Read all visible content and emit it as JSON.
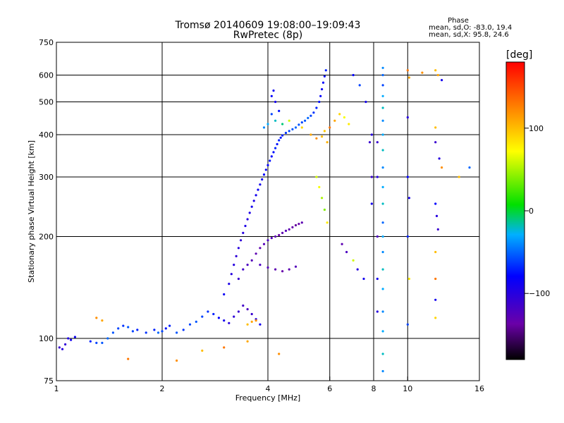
{
  "chart_data": {
    "type": "scatter",
    "title": "Tromsø 20140609 19:08:00–19:09:43",
    "subtitle": "RwPretec (8p)",
    "xlabel": "Frequency [MHz]",
    "ylabel": "Stationary phase Virtual Height [km]",
    "x_scale": "log",
    "y_scale": "log",
    "xlim": [
      1,
      16
    ],
    "ylim": [
      75,
      750
    ],
    "x_ticks": [
      1,
      2,
      4,
      6,
      8,
      10,
      16
    ],
    "x_tick_labels": [
      "1",
      "2",
      "4",
      "6",
      "8",
      "10",
      "16"
    ],
    "y_ticks": [
      75,
      100,
      200,
      300,
      400,
      500,
      600,
      750
    ],
    "y_tick_labels": [
      "75",
      "100",
      "200",
      "300",
      "400",
      "500",
      "600",
      "750"
    ],
    "x_grid": [
      2,
      4,
      6,
      8,
      10
    ],
    "y_grid": [
      100,
      200,
      300,
      400,
      500,
      600
    ],
    "stats": {
      "heading": "Phase",
      "o_line": "mean, sd,O: -83.0, 19.4",
      "x_line": "mean, sd,X:  95.8, 24.6"
    },
    "colorbar": {
      "label": "[deg]",
      "range": [
        -180,
        180
      ],
      "ticks": [
        100,
        0,
        -100
      ],
      "tick_labels": [
        "100",
        "0",
        "−100"
      ],
      "colormap": "rainbow"
    },
    "series": [
      {
        "points": [
          [
            1.02,
            94,
            -110
          ],
          [
            1.04,
            93,
            -100
          ],
          [
            1.06,
            96,
            -105
          ],
          [
            1.08,
            100,
            -95
          ],
          [
            1.1,
            99,
            -90
          ],
          [
            1.13,
            101,
            -85
          ],
          [
            1.25,
            98,
            -70
          ],
          [
            1.3,
            97,
            -60
          ],
          [
            1.35,
            97,
            -55
          ],
          [
            1.4,
            100,
            -50
          ],
          [
            1.45,
            104,
            -55
          ],
          [
            1.5,
            107,
            -60
          ],
          [
            1.55,
            109,
            -65
          ],
          [
            1.6,
            108,
            -55
          ],
          [
            1.65,
            105,
            -60
          ],
          [
            1.7,
            106,
            -70
          ],
          [
            1.8,
            104,
            -65
          ],
          [
            1.9,
            106,
            -70
          ],
          [
            1.95,
            104,
            -50
          ],
          [
            2.0,
            105,
            -60
          ],
          [
            2.05,
            107,
            -75
          ],
          [
            2.1,
            109,
            -70
          ],
          [
            2.2,
            104,
            -55
          ],
          [
            2.3,
            106,
            -65
          ],
          [
            2.4,
            110,
            -60
          ],
          [
            2.5,
            112,
            -55
          ],
          [
            2.6,
            116,
            -60
          ],
          [
            2.7,
            120,
            -65
          ],
          [
            2.8,
            118,
            -70
          ],
          [
            2.9,
            115,
            -80
          ],
          [
            3.0,
            113,
            -90
          ],
          [
            3.1,
            111,
            -100
          ],
          [
            3.2,
            116,
            -105
          ],
          [
            3.3,
            120,
            -110
          ],
          [
            3.4,
            125,
            -115
          ],
          [
            3.5,
            122,
            -120
          ],
          [
            3.6,
            118,
            -110
          ],
          [
            3.7,
            114,
            -100
          ],
          [
            3.8,
            110,
            -90
          ],
          [
            3.5,
            110,
            100
          ],
          [
            3.6,
            112,
            110
          ],
          [
            3.7,
            113,
            120
          ],
          [
            3.0,
            135,
            -85
          ],
          [
            3.1,
            145,
            -95
          ],
          [
            3.15,
            155,
            -100
          ],
          [
            3.2,
            165,
            -100
          ],
          [
            3.25,
            175,
            -105
          ],
          [
            3.3,
            185,
            -100
          ],
          [
            3.35,
            195,
            -105
          ],
          [
            3.4,
            205,
            -100
          ],
          [
            3.45,
            215,
            -95
          ],
          [
            3.5,
            225,
            -100
          ],
          [
            3.55,
            235,
            -95
          ],
          [
            3.6,
            245,
            -90
          ],
          [
            3.65,
            255,
            -95
          ],
          [
            3.7,
            265,
            -90
          ],
          [
            3.75,
            275,
            -85
          ],
          [
            3.8,
            285,
            -90
          ],
          [
            3.85,
            295,
            -85
          ],
          [
            3.9,
            305,
            -80
          ],
          [
            3.95,
            315,
            -85
          ],
          [
            4.0,
            325,
            -80
          ],
          [
            4.05,
            335,
            -75
          ],
          [
            4.1,
            345,
            -80
          ],
          [
            4.15,
            355,
            -75
          ],
          [
            4.2,
            365,
            -70
          ],
          [
            4.25,
            375,
            -75
          ],
          [
            4.3,
            385,
            -70
          ],
          [
            4.35,
            392,
            -75
          ],
          [
            4.4,
            398,
            -70
          ],
          [
            4.5,
            405,
            -65
          ],
          [
            4.6,
            410,
            -60
          ],
          [
            4.7,
            415,
            -55
          ],
          [
            4.8,
            420,
            -50
          ],
          [
            4.9,
            428,
            -55
          ],
          [
            5.0,
            435,
            -60
          ],
          [
            5.1,
            440,
            -55
          ],
          [
            5.2,
            448,
            -50
          ],
          [
            5.3,
            455,
            -60
          ],
          [
            5.4,
            465,
            -65
          ],
          [
            5.5,
            480,
            -70
          ],
          [
            5.6,
            500,
            -75
          ],
          [
            5.65,
            520,
            -80
          ],
          [
            5.7,
            545,
            -85
          ],
          [
            5.75,
            570,
            -80
          ],
          [
            5.8,
            595,
            -75
          ],
          [
            5.85,
            620,
            -70
          ],
          [
            3.3,
            150,
            -110
          ],
          [
            3.4,
            160,
            -115
          ],
          [
            3.5,
            165,
            -120
          ],
          [
            3.6,
            170,
            -125
          ],
          [
            3.7,
            178,
            -130
          ],
          [
            3.8,
            185,
            -130
          ],
          [
            3.9,
            190,
            -125
          ],
          [
            4.0,
            195,
            -120
          ],
          [
            4.1,
            198,
            -125
          ],
          [
            4.2,
            200,
            -130
          ],
          [
            4.3,
            202,
            -135
          ],
          [
            4.4,
            205,
            -130
          ],
          [
            4.5,
            208,
            -125
          ],
          [
            4.6,
            210,
            -130
          ],
          [
            4.7,
            213,
            -135
          ],
          [
            4.8,
            216,
            -140
          ],
          [
            4.9,
            218,
            -135
          ],
          [
            5.0,
            220,
            -130
          ],
          [
            3.8,
            165,
            -120
          ],
          [
            4.0,
            162,
            -125
          ],
          [
            4.2,
            160,
            -130
          ],
          [
            4.4,
            158,
            -135
          ],
          [
            4.6,
            160,
            -130
          ],
          [
            4.8,
            163,
            -125
          ],
          [
            4.1,
            520,
            -80
          ],
          [
            4.15,
            540,
            -85
          ],
          [
            4.2,
            500,
            -90
          ],
          [
            4.3,
            470,
            -75
          ],
          [
            4.1,
            460,
            -60
          ],
          [
            3.9,
            420,
            -40
          ],
          [
            4.0,
            430,
            -30
          ],
          [
            4.2,
            440,
            -20
          ],
          [
            4.4,
            430,
            -10
          ],
          [
            4.6,
            440,
            60
          ],
          [
            5.0,
            420,
            90
          ],
          [
            5.3,
            400,
            110
          ],
          [
            5.5,
            390,
            120
          ],
          [
            5.7,
            395,
            100
          ],
          [
            5.8,
            410,
            95
          ],
          [
            5.9,
            380,
            105
          ],
          [
            6.0,
            420,
            130
          ],
          [
            6.2,
            440,
            110
          ],
          [
            6.4,
            460,
            90
          ],
          [
            6.6,
            450,
            70
          ],
          [
            6.8,
            430,
            80
          ],
          [
            5.5,
            300,
            60
          ],
          [
            5.6,
            280,
            70
          ],
          [
            5.7,
            260,
            50
          ],
          [
            5.8,
            240,
            40
          ],
          [
            5.9,
            220,
            80
          ],
          [
            6.5,
            190,
            -130
          ],
          [
            6.7,
            180,
            -120
          ],
          [
            7.0,
            170,
            60
          ],
          [
            7.2,
            160,
            -100
          ],
          [
            7.5,
            150,
            -90
          ],
          [
            7.0,
            600,
            -80
          ],
          [
            7.3,
            560,
            -60
          ],
          [
            7.6,
            500,
            -90
          ],
          [
            7.8,
            380,
            -110
          ],
          [
            8.5,
            630,
            -40
          ],
          [
            8.5,
            600,
            -50
          ],
          [
            8.5,
            560,
            -60
          ],
          [
            8.5,
            520,
            -30
          ],
          [
            8.5,
            480,
            -20
          ],
          [
            8.5,
            440,
            -40
          ],
          [
            8.5,
            400,
            -30
          ],
          [
            8.5,
            360,
            -20
          ],
          [
            8.5,
            320,
            -40
          ],
          [
            8.5,
            280,
            -30
          ],
          [
            8.5,
            250,
            -20
          ],
          [
            8.5,
            220,
            -50
          ],
          [
            8.5,
            200,
            -30
          ],
          [
            8.5,
            180,
            -40
          ],
          [
            8.5,
            160,
            -20
          ],
          [
            8.5,
            140,
            -30
          ],
          [
            8.5,
            120,
            -40
          ],
          [
            8.5,
            105,
            -30
          ],
          [
            8.5,
            90,
            -20
          ],
          [
            8.5,
            80,
            -40
          ],
          [
            8.2,
            380,
            -110
          ],
          [
            8.2,
            300,
            -100
          ],
          [
            8.2,
            200,
            -120
          ],
          [
            8.2,
            150,
            -90
          ],
          [
            8.2,
            120,
            -100
          ],
          [
            7.9,
            400,
            -100
          ],
          [
            7.9,
            300,
            -110
          ],
          [
            7.9,
            250,
            -90
          ],
          [
            10.0,
            620,
            130
          ],
          [
            10.1,
            590,
            110
          ],
          [
            10.0,
            450,
            -100
          ],
          [
            10.0,
            300,
            -80
          ],
          [
            10.1,
            260,
            -90
          ],
          [
            10.0,
            200,
            -70
          ],
          [
            10.1,
            150,
            80
          ],
          [
            10.0,
            110,
            -60
          ],
          [
            11.0,
            610,
            120
          ],
          [
            12.0,
            620,
            100
          ],
          [
            12.2,
            600,
            110
          ],
          [
            12.5,
            580,
            -90
          ],
          [
            12.0,
            420,
            100
          ],
          [
            12.0,
            380,
            -110
          ],
          [
            12.3,
            340,
            -100
          ],
          [
            12.5,
            320,
            120
          ],
          [
            12.0,
            250,
            -80
          ],
          [
            12.1,
            230,
            -100
          ],
          [
            12.2,
            210,
            -110
          ],
          [
            12.0,
            180,
            100
          ],
          [
            12.0,
            150,
            130
          ],
          [
            12.0,
            130,
            -90
          ],
          [
            12.0,
            115,
            90
          ],
          [
            14.0,
            300,
            100
          ],
          [
            15.0,
            320,
            -50
          ],
          [
            1.3,
            115,
            120
          ],
          [
            1.35,
            113,
            110
          ],
          [
            1.6,
            87,
            130
          ],
          [
            2.2,
            86,
            120
          ],
          [
            2.6,
            92,
            100
          ],
          [
            3.0,
            94,
            130
          ],
          [
            3.5,
            98,
            110
          ],
          [
            4.3,
            90,
            120
          ]
        ]
      }
    ]
  }
}
